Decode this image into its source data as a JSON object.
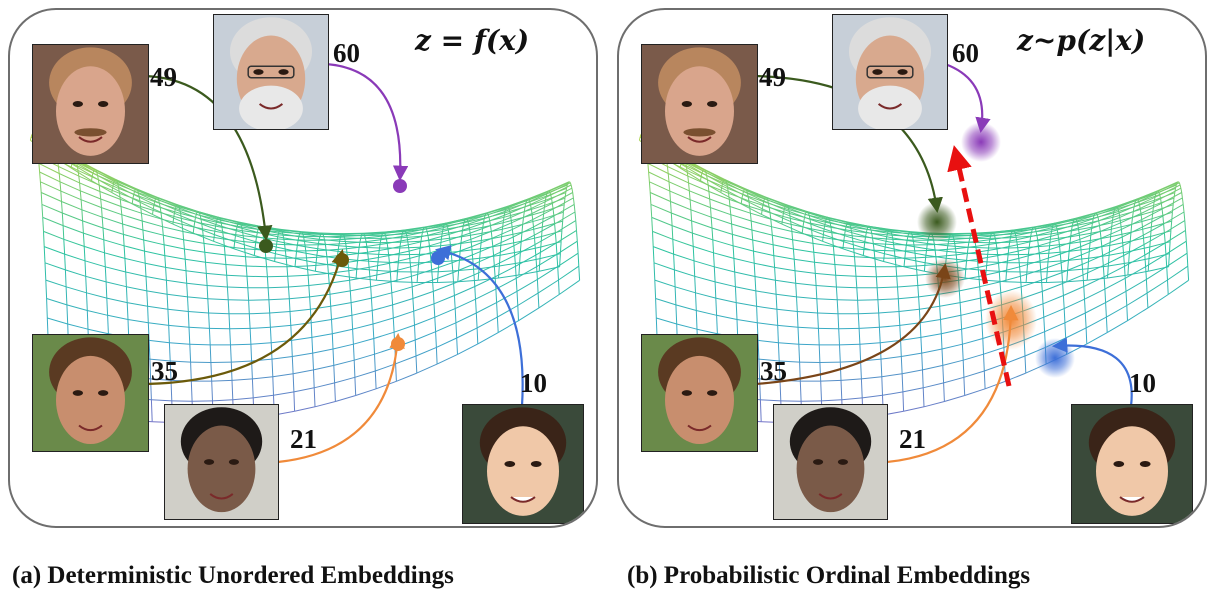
{
  "panels": [
    {
      "id": "a",
      "formula": "z = f(x)",
      "caption": "(a) Deterministic Unordered Embeddings",
      "faces": [
        {
          "age": "49",
          "point_color": "#3b5a1e",
          "person": "older man with moustache"
        },
        {
          "age": "60",
          "point_color": "#8a3ab8",
          "person": "older man with white beard"
        },
        {
          "age": "35",
          "point_color": "#6b5a0a",
          "person": "woman"
        },
        {
          "age": "21",
          "point_color": "#f08a3a",
          "person": "young man"
        },
        {
          "age": "10",
          "point_color": "#3d6fd8",
          "person": "smiling girl"
        }
      ]
    },
    {
      "id": "b",
      "formula": "z~p(z|x)",
      "caption": "(b) Probabilistic Ordinal Embeddings",
      "faces": [
        {
          "age": "49",
          "point_color": "#3b5a1e",
          "person": "older man with moustache"
        },
        {
          "age": "60",
          "point_color": "#8a3ab8",
          "person": "older man with white beard"
        },
        {
          "age": "35",
          "point_color": "#7a4518",
          "person": "woman"
        },
        {
          "age": "21",
          "point_color": "#f08a3a",
          "person": "young man"
        },
        {
          "age": "10",
          "point_color": "#3d6fd8",
          "person": "smiling girl"
        }
      ],
      "ordinal_arrow_color": "#e81010"
    }
  ],
  "surface_colors": [
    "#7a6fc8",
    "#3aa8c8",
    "#2ec4a0",
    "#9bd15a",
    "#f2dc3a"
  ]
}
